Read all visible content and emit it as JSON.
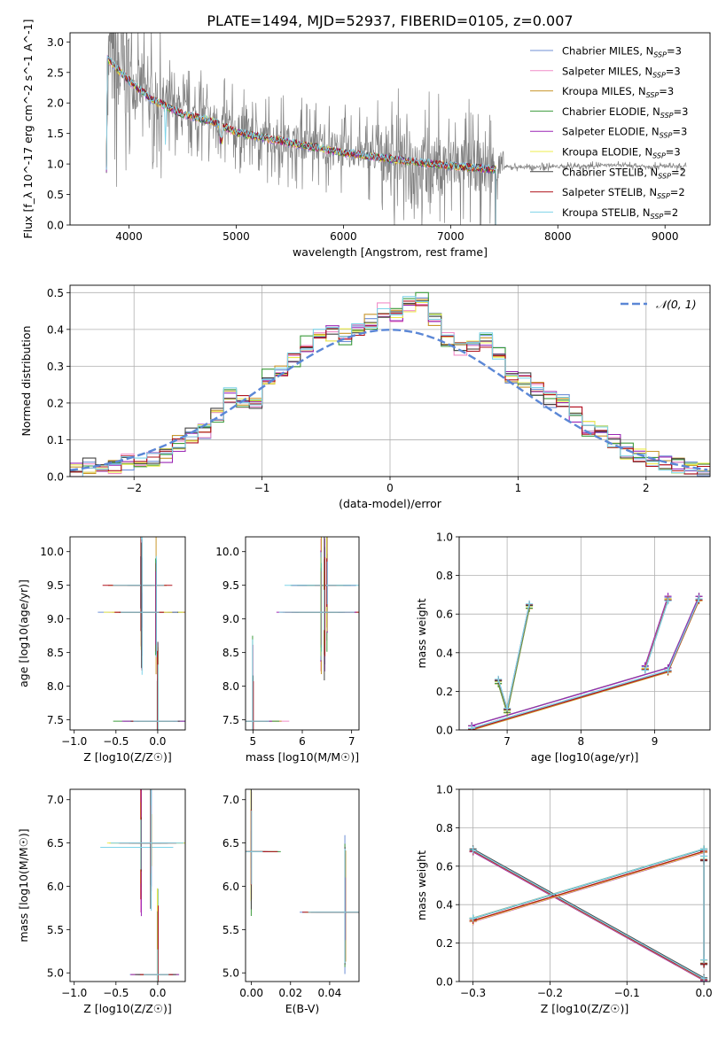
{
  "figure": {
    "title": "PLATE=1494, MJD=52937, FIBERID=0105, z=0.007"
  },
  "models": [
    {
      "name": "Chabrier MILES",
      "color": "#6f8fd6",
      "nssp": "3"
    },
    {
      "name": "Salpeter MILES",
      "color": "#f08cc8",
      "nssp": "3"
    },
    {
      "name": "Kroupa MILES",
      "color": "#c8962c",
      "nssp": "3"
    },
    {
      "name": "Chabrier ELODIE",
      "color": "#3d9b3d",
      "nssp": "3"
    },
    {
      "name": "Salpeter ELODIE",
      "color": "#9b27b5",
      "nssp": "3"
    },
    {
      "name": "Kroupa ELODIE",
      "color": "#ecec4e",
      "nssp": "3"
    },
    {
      "name": "Chabrier STELIB",
      "color": "#444444",
      "nssp": "2"
    },
    {
      "name": "Salpeter STELIB",
      "color": "#b0141e",
      "nssp": "2"
    },
    {
      "name": "Kroupa STELIB",
      "color": "#7ed3e8",
      "nssp": "2"
    }
  ],
  "chart_data": [
    {
      "id": "spectrum",
      "type": "line",
      "xlabel": "wavelength [Angstrom, rest frame]",
      "ylabel": "Flux [f_λ 10^-17 erg cm^-2 s^-1 A^-1]",
      "xlim": [
        3450,
        9420
      ],
      "ylim": [
        0,
        3.15
      ],
      "xticks": [
        "4000",
        "5000",
        "6000",
        "7000",
        "8000",
        "9000"
      ],
      "yticks": [
        "0.0",
        "0.5",
        "1.0",
        "1.5",
        "2.0",
        "2.5",
        "3.0"
      ],
      "data_color": "#808080",
      "data_x_range": [
        3800,
        9200
      ],
      "model_x_range": [
        3790,
        7420
      ],
      "continuum_points": [
        [
          3800,
          2.75
        ],
        [
          4000,
          2.4
        ],
        [
          4200,
          2.1
        ],
        [
          4500,
          1.85
        ],
        [
          4800,
          1.72
        ],
        [
          5000,
          1.55
        ],
        [
          5500,
          1.38
        ],
        [
          6000,
          1.22
        ],
        [
          6500,
          1.1
        ],
        [
          7000,
          1.0
        ],
        [
          7400,
          0.95
        ],
        [
          7800,
          0.95
        ],
        [
          8500,
          0.98
        ],
        [
          9200,
          0.95
        ]
      ]
    },
    {
      "id": "residual-histogram",
      "type": "histogram",
      "xlabel": "(data-model)/error",
      "ylabel": "Normed distribution",
      "xlim": [
        -2.5,
        2.5
      ],
      "ylim": [
        0,
        0.52
      ],
      "xticks": [
        "−2",
        "−1",
        "0",
        "1",
        "2"
      ],
      "yticks": [
        "0.0",
        "0.1",
        "0.2",
        "0.3",
        "0.4",
        "0.5"
      ],
      "legend": "𝒩(0, 1)",
      "gaussian_color": "#5b87d6",
      "bin_edges_start": -2.5,
      "bin_width": 0.1,
      "heights": [
        0.02,
        0.03,
        0.02,
        0.03,
        0.04,
        0.04,
        0.05,
        0.06,
        0.09,
        0.11,
        0.12,
        0.17,
        0.22,
        0.21,
        0.2,
        0.27,
        0.29,
        0.32,
        0.36,
        0.38,
        0.39,
        0.38,
        0.4,
        0.42,
        0.45,
        0.44,
        0.47,
        0.48,
        0.43,
        0.37,
        0.35,
        0.36,
        0.37,
        0.33,
        0.27,
        0.26,
        0.24,
        0.21,
        0.2,
        0.17,
        0.13,
        0.12,
        0.1,
        0.07,
        0.06,
        0.05,
        0.04,
        0.03,
        0.025,
        0.02
      ]
    },
    {
      "id": "age-vs-Z",
      "type": "scatter",
      "xlabel": "Z [log10(Z/Z☉)]",
      "ylabel": "age [log10(age/yr)]",
      "xlim": [
        -1.05,
        0.33
      ],
      "ylim": [
        7.35,
        10.22
      ],
      "xticks": [
        "−1.0",
        "−0.5",
        "0.0"
      ],
      "yticks": [
        "7.5",
        "8.0",
        "8.5",
        "9.0",
        "9.5",
        "10.0"
      ],
      "points": [
        [
          -0.2,
          9.5
        ],
        [
          -0.02,
          9.1
        ],
        [
          0.0,
          7.48
        ],
        [
          -0.19,
          9.1
        ]
      ]
    },
    {
      "id": "age-vs-mass",
      "type": "scatter",
      "xlabel": "mass [log10(M/M☉)]",
      "ylabel": "",
      "xlim": [
        4.85,
        7.15
      ],
      "ylim": [
        7.35,
        10.22
      ],
      "xticks": [
        "5",
        "6",
        "7"
      ],
      "yticks": [
        "7.5",
        "8.0",
        "8.5",
        "9.0",
        "9.5",
        "10.0"
      ],
      "points": [
        [
          6.5,
          9.5
        ],
        [
          6.45,
          9.1
        ],
        [
          5.0,
          7.48
        ],
        [
          6.38,
          9.1
        ]
      ]
    },
    {
      "id": "weight-vs-age",
      "type": "line",
      "xlabel": "age [log10(age/yr)]",
      "ylabel": "mass weight",
      "xlim": [
        6.35,
        9.75
      ],
      "ylim": [
        0,
        1.0
      ],
      "xticks": [
        "7",
        "8",
        "9"
      ],
      "yticks": [
        "0.0",
        "0.2",
        "0.4",
        "0.6",
        "0.8",
        "1.0"
      ],
      "series": [
        {
          "points": [
            [
              6.52,
              0.01
            ],
            [
              9.18,
              0.31
            ],
            [
              9.6,
              0.68
            ]
          ]
        },
        {
          "points": [
            [
              6.88,
              0.25
            ],
            [
              7.0,
              0.1
            ],
            [
              7.3,
              0.64
            ]
          ]
        },
        {
          "points": [
            [
              8.87,
              0.32
            ],
            [
              9.18,
              0.68
            ]
          ]
        }
      ]
    },
    {
      "id": "mass-vs-Z",
      "type": "scatter",
      "xlabel": "Z [log10(Z/Z☉)]",
      "ylabel": "mass [log10(M/M☉)]",
      "xlim": [
        -1.05,
        0.33
      ],
      "ylim": [
        4.9,
        7.12
      ],
      "xticks": [
        "−1.0",
        "−0.5",
        "0.0"
      ],
      "yticks": [
        "5.0",
        "5.5",
        "6.0",
        "6.5",
        "7.0"
      ],
      "points": [
        [
          -0.2,
          6.45
        ],
        [
          -0.08,
          6.5
        ],
        [
          0.0,
          4.98
        ]
      ]
    },
    {
      "id": "mass-vs-EBV",
      "type": "scatter",
      "xlabel": "E(B-V)",
      "ylabel": "",
      "xlim": [
        -0.003,
        0.055
      ],
      "ylim": [
        4.9,
        7.12
      ],
      "xticks": [
        "0.00",
        "0.02",
        "0.04"
      ],
      "yticks": [
        "5.0",
        "5.5",
        "6.0",
        "6.5",
        "7.0"
      ],
      "points": [
        [
          0.0,
          6.4
        ],
        [
          0.048,
          5.7
        ]
      ]
    },
    {
      "id": "weight-vs-Z",
      "type": "line",
      "xlabel": "Z [log10(Z/Z☉)]",
      "ylabel": "mass weight",
      "xlim": [
        -0.318,
        0.008
      ],
      "ylim": [
        0,
        1.0
      ],
      "xticks": [
        "−0.3",
        "−0.2",
        "−0.1",
        "0.0"
      ],
      "yticks": [
        "0.0",
        "0.2",
        "0.4",
        "0.6",
        "0.8",
        "1.0"
      ],
      "series": [
        {
          "points": [
            [
              -0.3,
              0.68
            ],
            [
              0.0,
              0.01
            ]
          ]
        },
        {
          "points": [
            [
              -0.3,
              0.32
            ],
            [
              0.0,
              0.68
            ]
          ]
        },
        {
          "points": [
            [
              0.0,
              0.64
            ],
            [
              0.0,
              0.1
            ]
          ]
        }
      ]
    }
  ]
}
